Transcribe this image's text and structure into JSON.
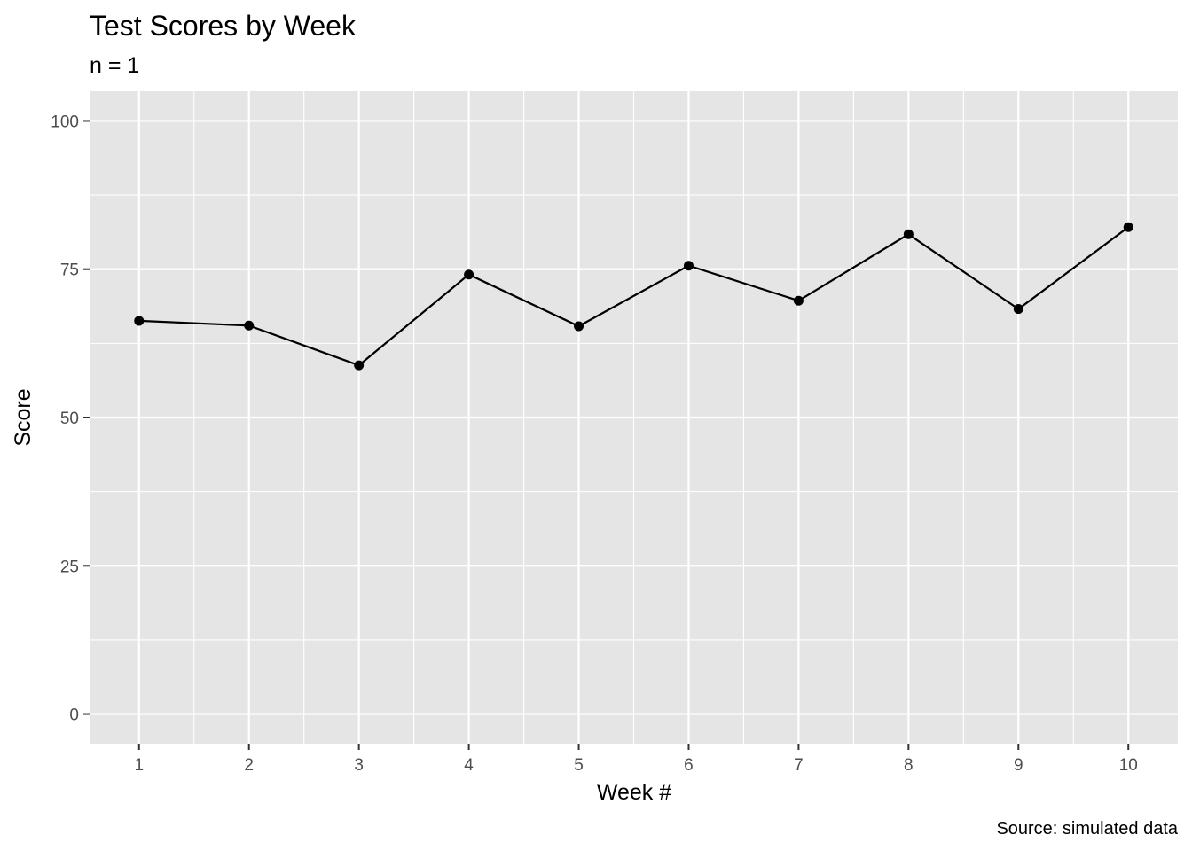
{
  "chart_data": {
    "type": "line",
    "title": "Test Scores by Week",
    "subtitle": "n = 1",
    "xlabel": "Week #",
    "ylabel": "Score",
    "caption": "Source: simulated data",
    "x": [
      1,
      2,
      3,
      4,
      5,
      6,
      7,
      8,
      9,
      10
    ],
    "y": [
      66.3,
      65.5,
      58.8,
      74.1,
      65.4,
      75.6,
      69.7,
      80.9,
      68.3,
      82.1
    ],
    "xlim": [
      0.55,
      10.45
    ],
    "ylim": [
      -5,
      105
    ],
    "x_ticks": [
      1,
      2,
      3,
      4,
      5,
      6,
      7,
      8,
      9,
      10
    ],
    "y_ticks": [
      0,
      25,
      50,
      75,
      100
    ],
    "grid": true,
    "markers": true,
    "colors": {
      "panel_background": "#e5e5e5",
      "grid": "#ffffff",
      "line": "#000000",
      "tick_text": "#4d4d4d"
    }
  }
}
